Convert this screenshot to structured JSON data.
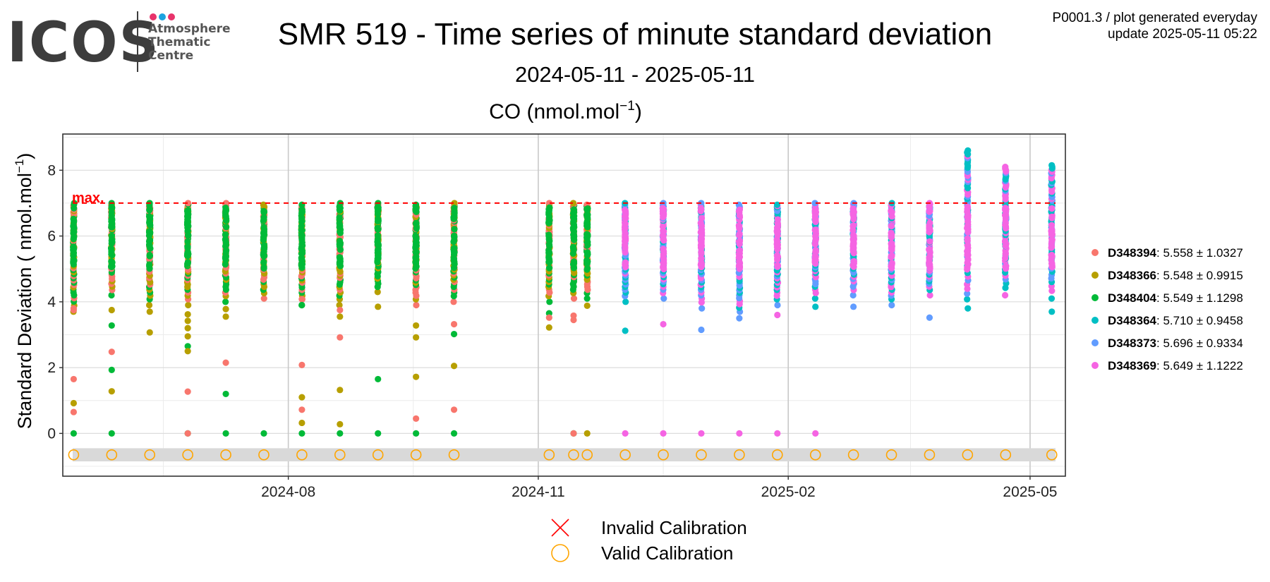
{
  "logo": {
    "text": "ICOS",
    "sub_lines": [
      "Atmosphere",
      "Thematic",
      "Centre"
    ],
    "dot_colors": [
      "#e8336b",
      "#1ca3e0",
      "#e8336b"
    ]
  },
  "header": {
    "title": "SMR 519 - Time series of minute standard deviation",
    "subtitle": "2024-05-11 - 2025-05-11",
    "meta_line1": "P0001.3 / plot generated everyday",
    "meta_line2": "update  2025-05-11 05:22"
  },
  "chart_data": {
    "type": "scatter",
    "title_prefix": "CO (nmol.mol",
    "title_sup": "−1",
    "title_suffix": ")",
    "ylabel_prefix": "Standard Deviation ( nmol.mol",
    "ylabel_sup": "−1",
    "ylabel_suffix": ")",
    "ylim": [
      -1.3,
      9.1
    ],
    "y_ticks": [
      0,
      2,
      4,
      6,
      8
    ],
    "xlim": [
      "2024-05-10",
      "2025-05-14"
    ],
    "x_ticks": [
      {
        "date": "2024-08-01",
        "label": "2024-08"
      },
      {
        "date": "2024-11-01",
        "label": "2024-11"
      },
      {
        "date": "2025-02-01",
        "label": "2025-02"
      },
      {
        "date": "2025-05-01",
        "label": "2025-05"
      }
    ],
    "x_minor_ticks": [
      "2024-06-16",
      "2024-09-16",
      "2024-12-17",
      "2025-03-18"
    ],
    "threshold": {
      "value": 7,
      "label": "max.",
      "color": "#ff0000"
    },
    "series": [
      {
        "name": "D348394",
        "stat": "5.558 ± 1.0327",
        "color": "#f8766d"
      },
      {
        "name": "D348366",
        "stat": "5.548 ± 0.9915",
        "color": "#b79f00"
      },
      {
        "name": "D348404",
        "stat": "5.549 ± 1.1298",
        "color": "#00ba38"
      },
      {
        "name": "D348364",
        "stat": "5.710 ± 0.9458",
        "color": "#00bfc4"
      },
      {
        "name": "D348373",
        "stat": "5.696 ± 0.9334",
        "color": "#619cff"
      },
      {
        "name": "D348369",
        "stat": "5.649 ± 1.1222",
        "color": "#f564e3"
      }
    ],
    "clusters": [
      {
        "date": "2024-05-14",
        "series": [
          0,
          1,
          2
        ],
        "min": 3.7,
        "max": 7.0,
        "outliers": [
          [
            0,
            3.75
          ],
          [
            0,
            3.8
          ],
          [
            0,
            1.65
          ],
          [
            1,
            0.92
          ],
          [
            0,
            0.65
          ],
          [
            2,
            0.0
          ]
        ]
      },
      {
        "date": "2024-05-28",
        "series": [
          0,
          1,
          2
        ],
        "min": 4.2,
        "max": 7.0,
        "outliers": [
          [
            1,
            3.75
          ],
          [
            2,
            3.28
          ],
          [
            0,
            2.48
          ],
          [
            2,
            1.93
          ],
          [
            1,
            1.28
          ],
          [
            2,
            0.0
          ]
        ]
      },
      {
        "date": "2024-06-11",
        "series": [
          0,
          1,
          2
        ],
        "min": 3.9,
        "max": 7.0,
        "outliers": [
          [
            1,
            3.7
          ],
          [
            1,
            3.07
          ]
        ]
      },
      {
        "date": "2024-06-25",
        "series": [
          0,
          1,
          2
        ],
        "min": 3.9,
        "max": 7.0,
        "outliers": [
          [
            1,
            3.62
          ],
          [
            1,
            3.42
          ],
          [
            1,
            3.2
          ],
          [
            1,
            2.95
          ],
          [
            2,
            2.65
          ],
          [
            1,
            2.5
          ],
          [
            0,
            1.27
          ],
          [
            2,
            0.0
          ],
          [
            0,
            0.0
          ]
        ]
      },
      {
        "date": "2024-07-09",
        "series": [
          0,
          1,
          2
        ],
        "min": 4.0,
        "max": 7.0,
        "outliers": [
          [
            1,
            3.78
          ],
          [
            1,
            3.55
          ],
          [
            0,
            2.15
          ],
          [
            2,
            1.2
          ],
          [
            2,
            0.0
          ]
        ]
      },
      {
        "date": "2024-07-23",
        "series": [
          0,
          1,
          2
        ],
        "min": 4.1,
        "max": 6.95,
        "outliers": [
          [
            2,
            0.0
          ]
        ]
      },
      {
        "date": "2024-08-06",
        "series": [
          0,
          1,
          2
        ],
        "min": 3.9,
        "max": 6.95,
        "outliers": [
          [
            0,
            4.08
          ],
          [
            2,
            3.9
          ],
          [
            0,
            2.08
          ],
          [
            1,
            1.1
          ],
          [
            0,
            0.72
          ],
          [
            1,
            0.32
          ],
          [
            2,
            0.0
          ]
        ]
      },
      {
        "date": "2024-08-20",
        "series": [
          0,
          1,
          2
        ],
        "min": 3.9,
        "max": 7.0,
        "outliers": [
          [
            0,
            3.75
          ],
          [
            1,
            3.55
          ],
          [
            0,
            2.92
          ],
          [
            1,
            1.32
          ],
          [
            1,
            0.28
          ],
          [
            2,
            0.0
          ]
        ]
      },
      {
        "date": "2024-09-03",
        "series": [
          0,
          1,
          2
        ],
        "min": 4.3,
        "max": 7.0,
        "outliers": [
          [
            1,
            3.85
          ],
          [
            2,
            1.65
          ],
          [
            2,
            0.0
          ]
        ]
      },
      {
        "date": "2024-09-17",
        "series": [
          0,
          1,
          2
        ],
        "min": 3.9,
        "max": 6.95,
        "outliers": [
          [
            1,
            3.28
          ],
          [
            1,
            2.92
          ],
          [
            1,
            1.72
          ],
          [
            0,
            0.45
          ],
          [
            2,
            0.0
          ]
        ]
      },
      {
        "date": "2024-10-01",
        "series": [
          0,
          1,
          2
        ],
        "min": 4.0,
        "max": 7.0,
        "outliers": [
          [
            0,
            3.32
          ],
          [
            2,
            3.02
          ],
          [
            1,
            2.05
          ],
          [
            0,
            0.72
          ],
          [
            2,
            0.0
          ]
        ]
      },
      {
        "date": "2024-11-05",
        "series": [
          0,
          1,
          2
        ],
        "min": 4.0,
        "max": 7.0,
        "outliers": [
          [
            2,
            3.65
          ],
          [
            0,
            3.52
          ],
          [
            1,
            3.22
          ]
        ]
      },
      {
        "date": "2024-11-14",
        "series": [
          0,
          1,
          2
        ],
        "min": 4.1,
        "max": 7.0,
        "outliers": [
          [
            0,
            3.58
          ],
          [
            0,
            3.45
          ],
          [
            2,
            0.0
          ],
          [
            0,
            0.0
          ]
        ]
      },
      {
        "date": "2024-11-19",
        "series": [
          0,
          1,
          2
        ],
        "min": 4.1,
        "max": 6.95,
        "outliers": [
          [
            1,
            3.88
          ],
          [
            1,
            0.0
          ]
        ]
      },
      {
        "date": "2024-12-03",
        "series": [
          3,
          4,
          5
        ],
        "min": 4.0,
        "max": 7.0,
        "outliers": [
          [
            3,
            3.12
          ],
          [
            5,
            0.0
          ]
        ]
      },
      {
        "date": "2024-12-17",
        "series": [
          3,
          4,
          5
        ],
        "min": 4.1,
        "max": 7.0,
        "outliers": [
          [
            5,
            3.32
          ],
          [
            5,
            0.0
          ]
        ]
      },
      {
        "date": "2024-12-31",
        "series": [
          3,
          4,
          5
        ],
        "min": 3.8,
        "max": 7.0,
        "outliers": [
          [
            4,
            3.15
          ],
          [
            5,
            0.0
          ]
        ]
      },
      {
        "date": "2025-01-14",
        "series": [
          3,
          4,
          5
        ],
        "min": 3.5,
        "max": 6.95,
        "outliers": [
          [
            5,
            0.0
          ]
        ]
      },
      {
        "date": "2025-01-28",
        "series": [
          3,
          4,
          5
        ],
        "min": 3.9,
        "max": 6.95,
        "outliers": [
          [
            5,
            3.6
          ],
          [
            5,
            0.0
          ]
        ]
      },
      {
        "date": "2025-02-11",
        "series": [
          3,
          4,
          5
        ],
        "min": 4.1,
        "max": 7.0,
        "outliers": [
          [
            3,
            3.85
          ],
          [
            5,
            0.0
          ]
        ]
      },
      {
        "date": "2025-02-25",
        "series": [
          3,
          4,
          5
        ],
        "min": 4.2,
        "max": 7.0,
        "outliers": [
          [
            4,
            3.85
          ]
        ]
      },
      {
        "date": "2025-03-11",
        "series": [
          3,
          4,
          5
        ],
        "min": 3.9,
        "max": 7.0,
        "outliers": []
      },
      {
        "date": "2025-03-25",
        "series": [
          3,
          4,
          5
        ],
        "min": 4.2,
        "max": 7.0,
        "outliers": [
          [
            4,
            3.52
          ]
        ]
      },
      {
        "date": "2025-04-08",
        "series": [
          3,
          4,
          5
        ],
        "min": 3.8,
        "max": 8.6,
        "outliers": []
      },
      {
        "date": "2025-04-22",
        "series": [
          3,
          4,
          5
        ],
        "min": 4.2,
        "max": 8.1,
        "outliers": []
      },
      {
        "date": "2025-05-09",
        "series": [
          3,
          4,
          5
        ],
        "min": 4.1,
        "max": 8.15,
        "outliers": [
          [
            3,
            3.7
          ]
        ]
      }
    ],
    "calibrations": {
      "y": -0.65,
      "band": [
        -0.85,
        -0.45
      ],
      "band_color": "#d9d9d9",
      "valid_color": "#ffa500",
      "invalid_color": "#ff0000",
      "valid_label": "Valid Calibration",
      "invalid_label": "Invalid Calibration"
    }
  }
}
